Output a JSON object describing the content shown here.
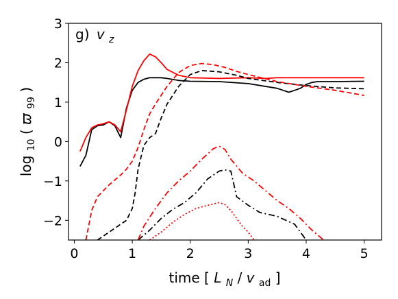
{
  "chart_data": {
    "type": "line",
    "panel_label": "g)",
    "panel_var": "v",
    "panel_sub": "z",
    "xlabel": {
      "prefix": "time [",
      "L": "L",
      "Lsub": "N",
      "slash": "/",
      "v": "v",
      "vsub": "ad",
      "suffix": "]"
    },
    "ylabel": {
      "prefix": "log",
      "sub": "10",
      "open": "(",
      "sym": "ϖ",
      "symsub": "99",
      "close": ")"
    },
    "xlim": [
      -0.1,
      5.3
    ],
    "ylim": [
      -2.5,
      3.0
    ],
    "xticks": [
      0,
      1,
      2,
      3,
      4,
      5
    ],
    "yticks": [
      -2,
      -1,
      0,
      1,
      2,
      3
    ],
    "xtick_labels": [
      "0",
      "1",
      "2",
      "3",
      "4",
      "5"
    ],
    "ytick_labels": [
      "−2",
      "−1",
      "0",
      "1",
      "2",
      "3"
    ],
    "series": [
      {
        "color": "#000000",
        "style": "solid",
        "x": [
          0.1,
          0.2,
          0.3,
          0.4,
          0.5,
          0.6,
          0.7,
          0.8,
          0.9,
          1.0,
          1.1,
          1.2,
          1.3,
          1.4,
          1.5,
          1.6,
          1.8,
          2.0,
          2.5,
          3.0,
          3.5,
          3.7,
          3.8,
          3.9,
          4.0,
          4.1,
          4.2,
          4.5,
          5.0
        ],
        "y": [
          -0.63,
          -0.35,
          0.3,
          0.4,
          0.42,
          0.5,
          0.4,
          0.1,
          0.85,
          1.3,
          1.5,
          1.58,
          1.62,
          1.62,
          1.62,
          1.6,
          1.55,
          1.53,
          1.52,
          1.47,
          1.35,
          1.25,
          1.3,
          1.35,
          1.45,
          1.5,
          1.52,
          1.52,
          1.53
        ]
      },
      {
        "color": "#ff0000",
        "style": "solid",
        "x": [
          0.1,
          0.2,
          0.3,
          0.4,
          0.5,
          0.6,
          0.7,
          0.8,
          0.9,
          1.0,
          1.1,
          1.2,
          1.3,
          1.4,
          1.5,
          1.6,
          1.8,
          2.0,
          2.5,
          3.0,
          3.3,
          3.5,
          4.0,
          4.5,
          5.0
        ],
        "y": [
          -0.25,
          0.1,
          0.35,
          0.42,
          0.45,
          0.5,
          0.42,
          0.25,
          0.8,
          1.4,
          1.8,
          2.05,
          2.22,
          2.15,
          2.0,
          1.83,
          1.68,
          1.62,
          1.6,
          1.62,
          1.6,
          1.62,
          1.62,
          1.62,
          1.62
        ]
      },
      {
        "color": "#000000",
        "style": "dashed",
        "x": [
          0.4,
          0.5,
          0.7,
          0.9,
          1.0,
          1.05,
          1.1,
          1.2,
          1.3,
          1.4,
          1.5,
          1.6,
          1.8,
          2.0,
          2.2,
          2.5,
          2.8,
          3.0,
          3.5,
          4.0,
          4.5,
          5.0
        ],
        "y": [
          -2.5,
          -2.4,
          -2.2,
          -2.0,
          -1.7,
          -1.3,
          -0.7,
          -0.1,
          0.1,
          0.2,
          0.6,
          0.95,
          1.4,
          1.7,
          1.8,
          1.77,
          1.68,
          1.6,
          1.5,
          1.42,
          1.36,
          1.34
        ]
      },
      {
        "color": "#ff0000",
        "style": "dashed",
        "x": [
          0.2,
          0.3,
          0.4,
          0.6,
          0.8,
          0.9,
          1.0,
          1.1,
          1.2,
          1.3,
          1.4,
          1.6,
          1.8,
          2.0,
          2.2,
          2.4,
          2.6,
          2.8,
          3.0,
          3.5,
          4.0,
          4.5,
          5.0
        ],
        "y": [
          -2.5,
          -1.75,
          -1.4,
          -1.1,
          -0.85,
          -0.7,
          -0.5,
          -0.15,
          0.3,
          0.7,
          0.95,
          1.4,
          1.75,
          1.93,
          1.98,
          1.95,
          1.88,
          1.78,
          1.7,
          1.52,
          1.4,
          1.3,
          1.17
        ]
      },
      {
        "color": "#000000",
        "style": "dashdot",
        "x": [
          1.1,
          1.3,
          1.5,
          1.7,
          1.9,
          2.1,
          2.3,
          2.5,
          2.6,
          2.7,
          2.8,
          3.0,
          3.2,
          3.5,
          3.8,
          4.0
        ],
        "y": [
          -2.5,
          -2.25,
          -1.95,
          -1.72,
          -1.55,
          -1.3,
          -0.95,
          -0.75,
          -0.72,
          -0.75,
          -1.4,
          -1.62,
          -1.8,
          -1.9,
          -2.1,
          -2.5
        ]
      },
      {
        "color": "#ff0000",
        "style": "dashdot",
        "x": [
          1.1,
          1.2,
          1.4,
          1.6,
          1.8,
          2.0,
          2.2,
          2.4,
          2.5,
          2.6,
          2.7,
          2.9,
          3.1,
          3.3,
          3.5,
          3.7,
          3.9,
          4.1,
          4.3
        ],
        "y": [
          -2.5,
          -2.15,
          -1.7,
          -1.3,
          -1.0,
          -0.75,
          -0.45,
          -0.18,
          -0.12,
          -0.2,
          -0.45,
          -0.8,
          -1.0,
          -1.25,
          -1.5,
          -1.7,
          -1.95,
          -2.25,
          -2.5
        ]
      },
      {
        "color": "#ff0000",
        "style": "dotted",
        "x": [
          1.3,
          1.5,
          1.7,
          1.9,
          2.1,
          2.3,
          2.5,
          2.6,
          2.7,
          2.8,
          2.9,
          3.0,
          3.1
        ],
        "y": [
          -2.5,
          -2.3,
          -2.05,
          -1.85,
          -1.7,
          -1.62,
          -1.55,
          -1.6,
          -1.75,
          -1.95,
          -2.15,
          -2.3,
          -2.5
        ]
      }
    ]
  }
}
